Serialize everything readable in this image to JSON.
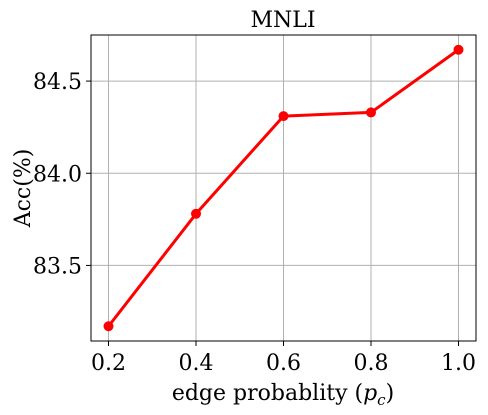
{
  "chart_data": {
    "type": "line",
    "title": "MNLI",
    "xlabel": "edge probablity",
    "xlabel_symbol": "p",
    "xlabel_subscript": "c",
    "ylabel": "Acc(%)",
    "x": [
      0.2,
      0.4,
      0.6,
      0.8,
      1.0
    ],
    "xticks": [
      "0.2",
      "0.4",
      "0.6",
      "0.8",
      "1.0"
    ],
    "yticks": [
      "83.5",
      "84.0",
      "84.5"
    ],
    "ytick_values": [
      83.5,
      84.0,
      84.5
    ],
    "xlim": [
      0.16,
      1.04
    ],
    "ylim": [
      83.09,
      84.75
    ],
    "grid": true,
    "series": [
      {
        "values": [
          83.17,
          83.78,
          84.31,
          84.33,
          84.67
        ],
        "color": "#ff0000",
        "marker": "circle"
      }
    ]
  }
}
